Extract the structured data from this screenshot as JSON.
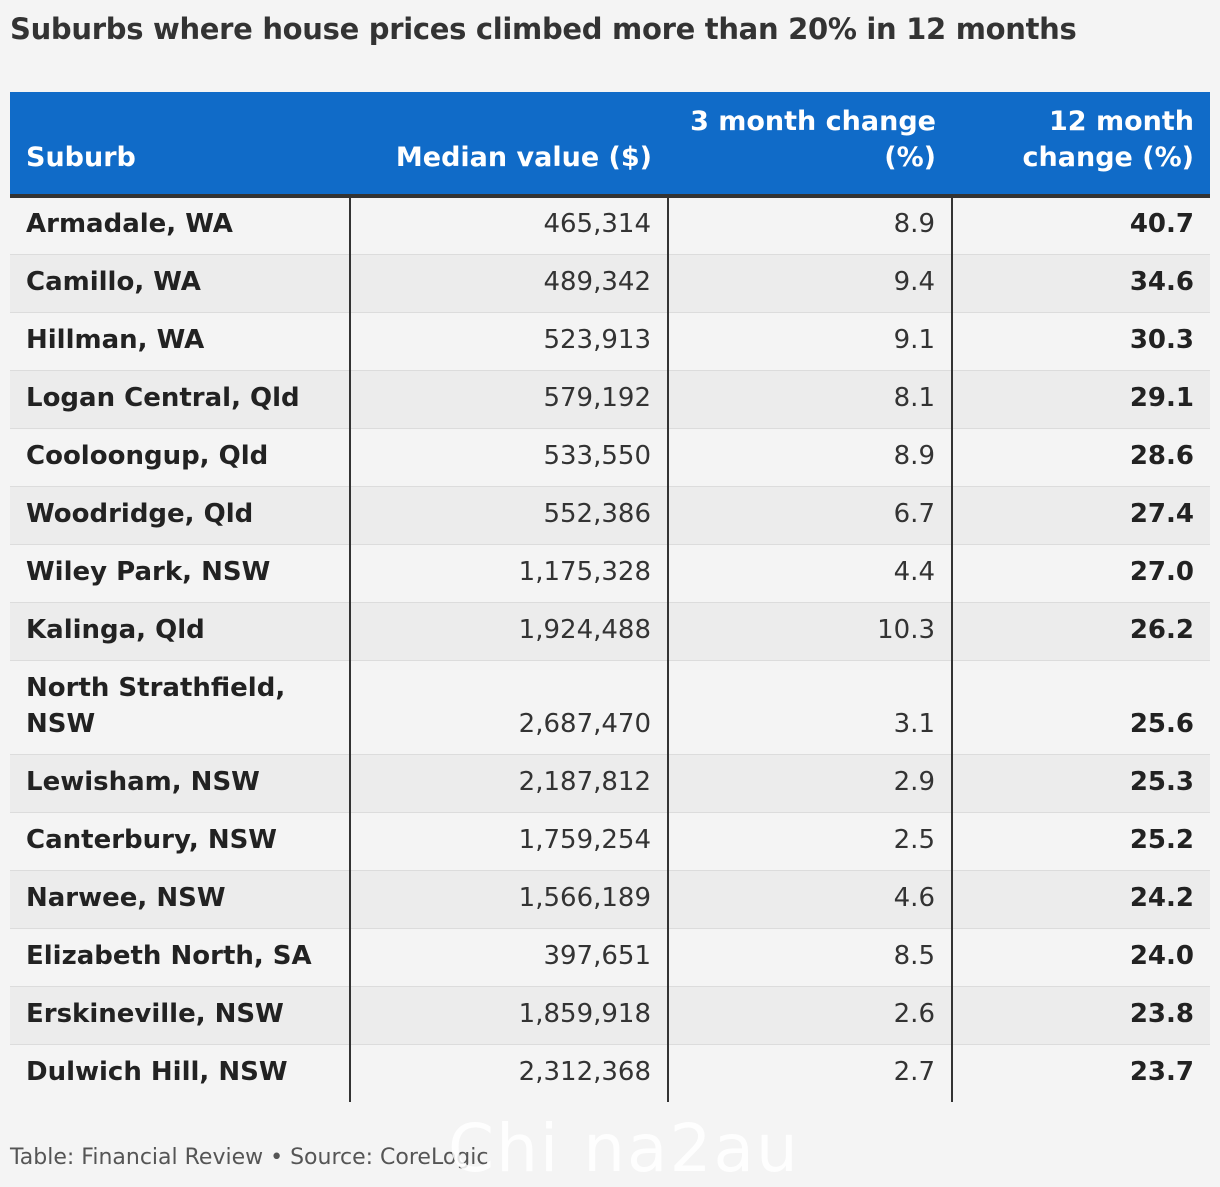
{
  "chart_data": {
    "type": "table",
    "title": "Suburbs where house prices climbed more than 20% in 12 months",
    "columns": [
      {
        "key": "suburb",
        "label": "Suburb"
      },
      {
        "key": "median",
        "label": "Median value ($)"
      },
      {
        "key": "m3",
        "label": "3 month change (%)"
      },
      {
        "key": "m12",
        "label": "12 month change (%)"
      }
    ],
    "rows": [
      {
        "suburb": "Armadale, WA",
        "median": "465,314",
        "m3": "8.9",
        "m12": "40.7"
      },
      {
        "suburb": "Camillo, WA",
        "median": "489,342",
        "m3": "9.4",
        "m12": "34.6"
      },
      {
        "suburb": "Hillman, WA",
        "median": "523,913",
        "m3": "9.1",
        "m12": "30.3"
      },
      {
        "suburb": "Logan Central, Qld",
        "median": "579,192",
        "m3": "8.1",
        "m12": "29.1"
      },
      {
        "suburb": "Cooloongup, Qld",
        "median": "533,550",
        "m3": "8.9",
        "m12": "28.6"
      },
      {
        "suburb": "Woodridge, Qld",
        "median": "552,386",
        "m3": "6.7",
        "m12": "27.4"
      },
      {
        "suburb": "Wiley Park, NSW",
        "median": "1,175,328",
        "m3": "4.4",
        "m12": "27.0"
      },
      {
        "suburb": "Kalinga, Qld",
        "median": "1,924,488",
        "m3": "10.3",
        "m12": "26.2"
      },
      {
        "suburb": "North Strathfield, NSW",
        "median": "2,687,470",
        "m3": "3.1",
        "m12": "25.6"
      },
      {
        "suburb": "Lewisham, NSW",
        "median": "2,187,812",
        "m3": "2.9",
        "m12": "25.3"
      },
      {
        "suburb": "Canterbury, NSW",
        "median": "1,759,254",
        "m3": "2.5",
        "m12": "25.2"
      },
      {
        "suburb": "Narwee, NSW",
        "median": "1,566,189",
        "m3": "4.6",
        "m12": "24.2"
      },
      {
        "suburb": "Elizabeth North, SA",
        "median": "397,651",
        "m3": "8.5",
        "m12": "24.0"
      },
      {
        "suburb": "Erskineville, NSW",
        "median": "1,859,918",
        "m3": "2.6",
        "m12": "23.8"
      },
      {
        "suburb": "Dulwich Hill, NSW",
        "median": "2,312,368",
        "m3": "2.7",
        "m12": "23.7"
      }
    ]
  },
  "footer": {
    "text": "Table: Financial Review • Source: CoreLogic"
  },
  "watermark": {
    "text": "Chi na2au"
  },
  "colors": {
    "header_bg": "#106bc8",
    "header_text": "#ffffff",
    "row_alt_bg": "#ececec",
    "page_bg": "#f4f4f4"
  }
}
